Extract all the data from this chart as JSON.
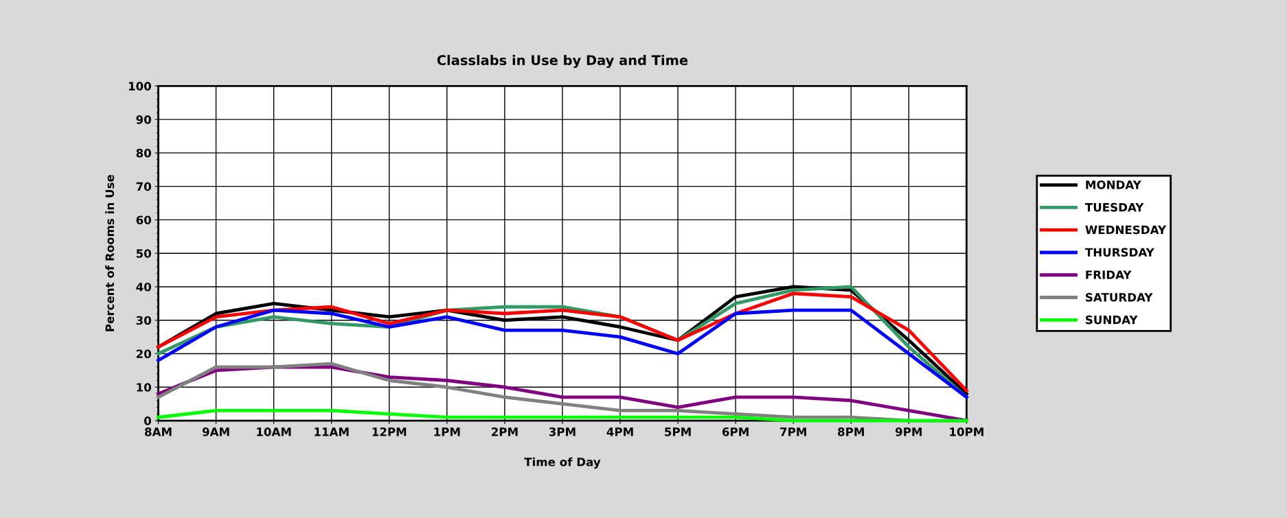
{
  "chart_data": {
    "type": "line",
    "title": "Classlabs in Use by Day and Time",
    "xlabel": "Time of Day",
    "ylabel": "Percent of Rooms in Use",
    "categories": [
      "8AM",
      "9AM",
      "10AM",
      "11AM",
      "12PM",
      "1PM",
      "2PM",
      "3PM",
      "4PM",
      "5PM",
      "6PM",
      "7PM",
      "8PM",
      "9PM",
      "10PM"
    ],
    "ylim": [
      0,
      100
    ],
    "yticks": [
      0,
      10,
      20,
      30,
      40,
      50,
      60,
      70,
      80,
      90,
      100
    ],
    "grid": true,
    "legend": "right",
    "marker": "none",
    "line_style": "solid",
    "series": [
      {
        "name": "MONDAY",
        "color": "#000000",
        "values": [
          22,
          32,
          35,
          33,
          31,
          33,
          30,
          31,
          28,
          24,
          37,
          40,
          39,
          24,
          8
        ]
      },
      {
        "name": "TUESDAY",
        "color": "#339966",
        "values": [
          20,
          28,
          31,
          29,
          28,
          33,
          34,
          34,
          31,
          24,
          35,
          39,
          40,
          22,
          7
        ]
      },
      {
        "name": "WEDNESDAY",
        "color": "#ff0000",
        "values": [
          22,
          31,
          33,
          34,
          29,
          33,
          32,
          33,
          31,
          24,
          32,
          38,
          37,
          27,
          9
        ]
      },
      {
        "name": "THURSDAY",
        "color": "#0000ff",
        "values": [
          18,
          28,
          33,
          32,
          28,
          31,
          27,
          27,
          25,
          20,
          32,
          33,
          33,
          20,
          7
        ]
      },
      {
        "name": "FRIDAY",
        "color": "#800080",
        "values": [
          8,
          15,
          16,
          16,
          13,
          12,
          10,
          7,
          7,
          4,
          7,
          7,
          6,
          3,
          0
        ]
      },
      {
        "name": "SATURDAY",
        "color": "#808080",
        "values": [
          7,
          16,
          16,
          17,
          12,
          10,
          7,
          5,
          3,
          3,
          2,
          1,
          1,
          0,
          0
        ]
      },
      {
        "name": "SUNDAY",
        "color": "#00ff00",
        "values": [
          1,
          3,
          3,
          3,
          2,
          1,
          1,
          1,
          1,
          1,
          1,
          0,
          0,
          0,
          0
        ]
      }
    ]
  }
}
